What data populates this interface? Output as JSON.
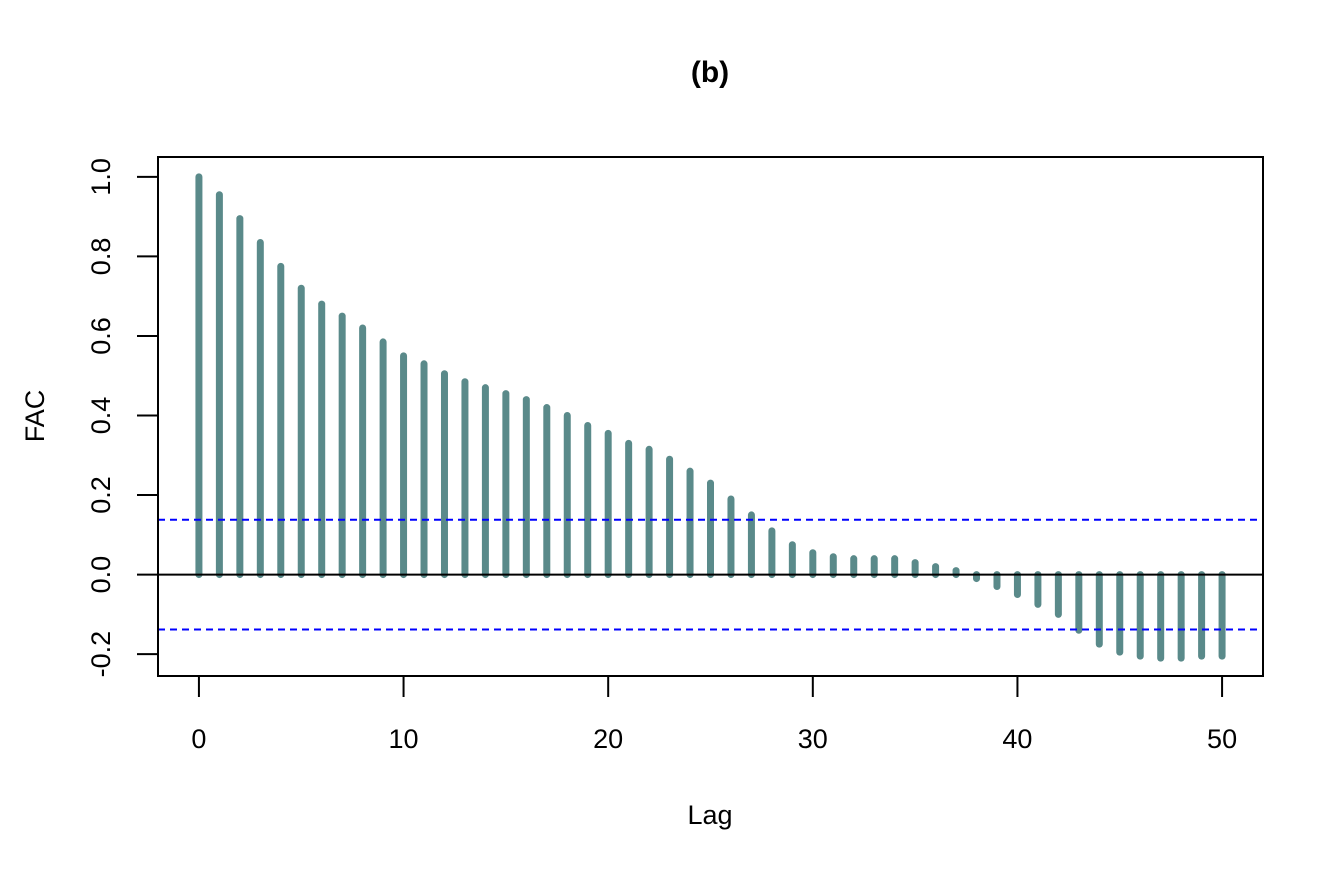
{
  "chart_data": {
    "type": "bar",
    "title": "(b)",
    "xlabel": "Lag",
    "ylabel": "FAC",
    "x_ticks": [
      "0",
      "10",
      "20",
      "30",
      "40",
      "50"
    ],
    "y_ticks": [
      "-0.2",
      "0.0",
      "0.2",
      "0.4",
      "0.6",
      "0.8",
      "1.0"
    ],
    "xlim": [
      -2,
      52
    ],
    "ylim": [
      -0.255,
      1.05
    ],
    "lags": [
      0,
      1,
      2,
      3,
      4,
      5,
      6,
      7,
      8,
      9,
      10,
      11,
      12,
      13,
      14,
      15,
      16,
      17,
      18,
      19,
      20,
      21,
      22,
      23,
      24,
      25,
      26,
      27,
      28,
      29,
      30,
      31,
      32,
      33,
      34,
      35,
      36,
      37,
      38,
      39,
      40,
      41,
      42,
      43,
      44,
      45,
      46,
      47,
      48,
      49,
      50
    ],
    "values": [
      1.0,
      0.955,
      0.895,
      0.835,
      0.775,
      0.72,
      0.68,
      0.65,
      0.62,
      0.585,
      0.55,
      0.53,
      0.505,
      0.485,
      0.47,
      0.455,
      0.44,
      0.42,
      0.4,
      0.375,
      0.355,
      0.33,
      0.315,
      0.29,
      0.26,
      0.23,
      0.19,
      0.15,
      0.11,
      0.075,
      0.055,
      0.045,
      0.04,
      0.04,
      0.04,
      0.03,
      0.02,
      0.01,
      -0.01,
      -0.03,
      -0.05,
      -0.075,
      -0.1,
      -0.14,
      -0.175,
      -0.195,
      -0.205,
      -0.21,
      -0.21,
      -0.205,
      -0.205
    ],
    "confidence_band": [
      0.138,
      -0.138
    ],
    "colors": {
      "bars": "#5a8a8a",
      "confidence": "#0000ff",
      "zero_line": "#000000"
    }
  }
}
